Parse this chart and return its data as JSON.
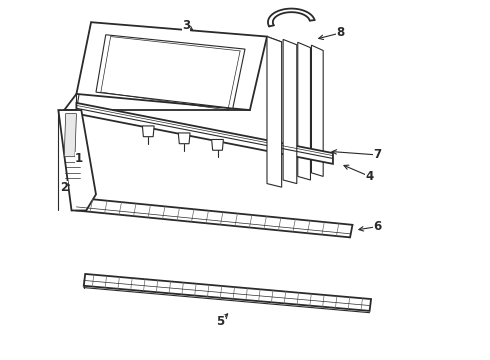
{
  "background_color": "#ffffff",
  "line_color": "#2a2a2a",
  "fig_width": 4.9,
  "fig_height": 3.6,
  "dpi": 100,
  "label_positions": {
    "1": [
      0.175,
      0.515,
      0.215,
      0.525
    ],
    "2": [
      0.155,
      0.455,
      0.195,
      0.475
    ],
    "3": [
      0.385,
      0.895,
      0.395,
      0.87
    ],
    "4": [
      0.72,
      0.49,
      0.685,
      0.495
    ],
    "5": [
      0.455,
      0.105,
      0.47,
      0.135
    ],
    "6": [
      0.755,
      0.39,
      0.715,
      0.395
    ],
    "7": [
      0.755,
      0.575,
      0.715,
      0.565
    ],
    "8": [
      0.69,
      0.895,
      0.645,
      0.865
    ]
  }
}
